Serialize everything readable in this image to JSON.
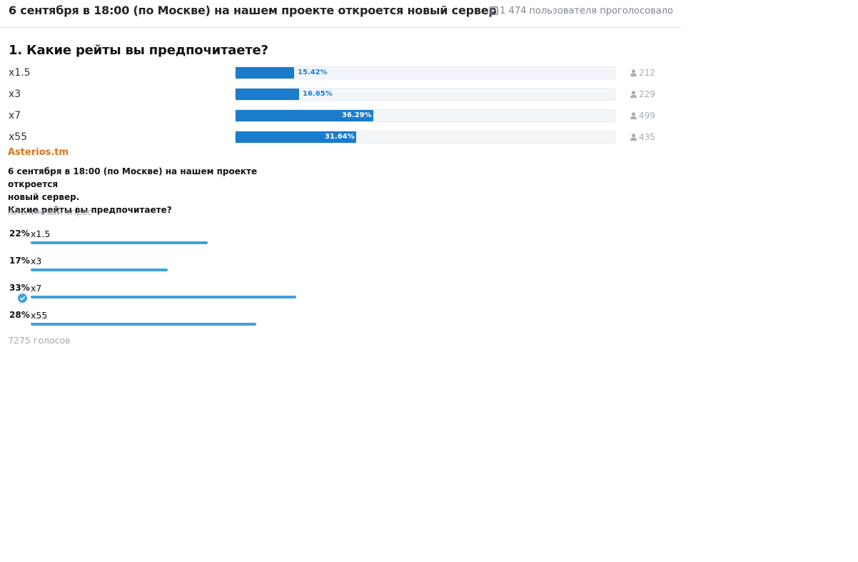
{
  "forum_poll": {
    "title": "6 сентября в 18:00 (по Москве) на нашем проекте откроется новый сервер",
    "total_votes": "1 474 пользователя проголосовало",
    "total_icon": "check-square-icon",
    "question": "1. Какие рейты вы предпочитаете?",
    "bar_color": "#1b7ccc",
    "options": [
      {
        "label": "x1.5",
        "percent": "15.42%",
        "value": 15.42,
        "count": "212"
      },
      {
        "label": "x3",
        "percent": "16.65%",
        "value": 16.65,
        "count": "229"
      },
      {
        "label": "x7",
        "percent": "36.29%",
        "value": 36.29,
        "count": "499"
      },
      {
        "label": "x55",
        "percent": "31.64%",
        "value": 31.64,
        "count": "435"
      }
    ],
    "count_icon": "user-icon"
  },
  "telegram_poll": {
    "channel": "Asterios.tm",
    "question_lines": [
      "6 сентября в 18:00 (по Москве) на нашем проекте откроется",
      "новый сервер.",
      "Какие рейты вы предпочитаете?"
    ],
    "poll_type": "Анонимный опрос",
    "bar_color": "#3ea1dc",
    "channel_color": "#d7741e",
    "options": [
      {
        "percent": "22%",
        "label": "x1.5",
        "value": 22,
        "chosen": false
      },
      {
        "percent": "17%",
        "label": "x3",
        "value": 17,
        "chosen": false
      },
      {
        "percent": "33%",
        "label": "x7",
        "value": 33,
        "chosen": true
      },
      {
        "percent": "28%",
        "label": "x55",
        "value": 28,
        "chosen": false
      }
    ],
    "chosen_icon": "check-circle-icon",
    "votes": "7275 голосов"
  }
}
